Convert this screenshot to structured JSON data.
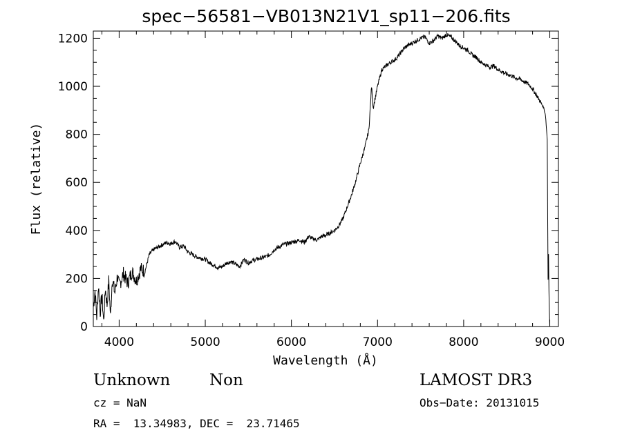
{
  "chart_data": {
    "type": "line",
    "title": "spec−56581−VB013N21V1_sp11−206.fits",
    "xlabel": "Wavelength (Å)",
    "ylabel": "Flux (relative)",
    "xlim": [
      3700,
      9100
    ],
    "ylim": [
      0,
      1230
    ],
    "xticks": [
      4000,
      5000,
      6000,
      7000,
      8000,
      9000
    ],
    "yticks": [
      0,
      200,
      400,
      600,
      800,
      1000,
      1200
    ],
    "series": [
      {
        "name": "flux",
        "x": [
          3700,
          3720,
          3740,
          3760,
          3780,
          3800,
          3820,
          3840,
          3860,
          3880,
          3900,
          3920,
          3950,
          3980,
          4000,
          4050,
          4100,
          4150,
          4200,
          4250,
          4300,
          4350,
          4400,
          4450,
          4500,
          4550,
          4600,
          4650,
          4700,
          4750,
          4800,
          4850,
          4900,
          4950,
          5000,
          5050,
          5100,
          5150,
          5200,
          5250,
          5300,
          5350,
          5400,
          5450,
          5500,
          5550,
          5600,
          5650,
          5700,
          5750,
          5800,
          5850,
          5900,
          5950,
          6000,
          6050,
          6100,
          6150,
          6200,
          6250,
          6300,
          6350,
          6400,
          6450,
          6500,
          6550,
          6600,
          6650,
          6700,
          6750,
          6800,
          6850,
          6900,
          6930,
          6950,
          7000,
          7050,
          7100,
          7150,
          7200,
          7250,
          7300,
          7350,
          7400,
          7450,
          7500,
          7550,
          7600,
          7650,
          7700,
          7750,
          7800,
          7850,
          7900,
          7950,
          8000,
          8050,
          8100,
          8150,
          8200,
          8250,
          8300,
          8350,
          8400,
          8450,
          8500,
          8550,
          8600,
          8650,
          8700,
          8750,
          8800,
          8850,
          8900,
          8930,
          8950,
          8970,
          8980,
          8985,
          8990,
          8995,
          9000
        ],
        "values": [
          80,
          150,
          40,
          170,
          60,
          130,
          20,
          160,
          90,
          190,
          40,
          200,
          140,
          210,
          170,
          220,
          180,
          230,
          190,
          240,
          230,
          300,
          320,
          330,
          340,
          350,
          345,
          355,
          330,
          335,
          310,
          300,
          290,
          285,
          280,
          265,
          255,
          245,
          250,
          265,
          270,
          260,
          250,
          280,
          265,
          275,
          280,
          285,
          290,
          300,
          320,
          330,
          340,
          345,
          350,
          355,
          360,
          350,
          375,
          365,
          360,
          375,
          380,
          390,
          400,
          420,
          450,
          500,
          550,
          610,
          680,
          740,
          820,
          1000,
          910,
          1000,
          1070,
          1085,
          1100,
          1110,
          1130,
          1155,
          1170,
          1180,
          1190,
          1200,
          1205,
          1180,
          1190,
          1210,
          1200,
          1215,
          1205,
          1190,
          1170,
          1160,
          1150,
          1130,
          1120,
          1100,
          1090,
          1080,
          1085,
          1070,
          1060,
          1050,
          1045,
          1035,
          1030,
          1020,
          1010,
          990,
          960,
          930,
          910,
          880,
          780,
          200,
          300,
          150,
          60,
          0
        ]
      }
    ]
  },
  "info": {
    "class_label": "Unknown",
    "subclass_label": "Non",
    "survey": "LAMOST DR3",
    "cz": "cz = NaN",
    "obs_date": "Obs−Date: 20131015",
    "coords": "RA =  13.34983, DEC =  23.71465"
  }
}
